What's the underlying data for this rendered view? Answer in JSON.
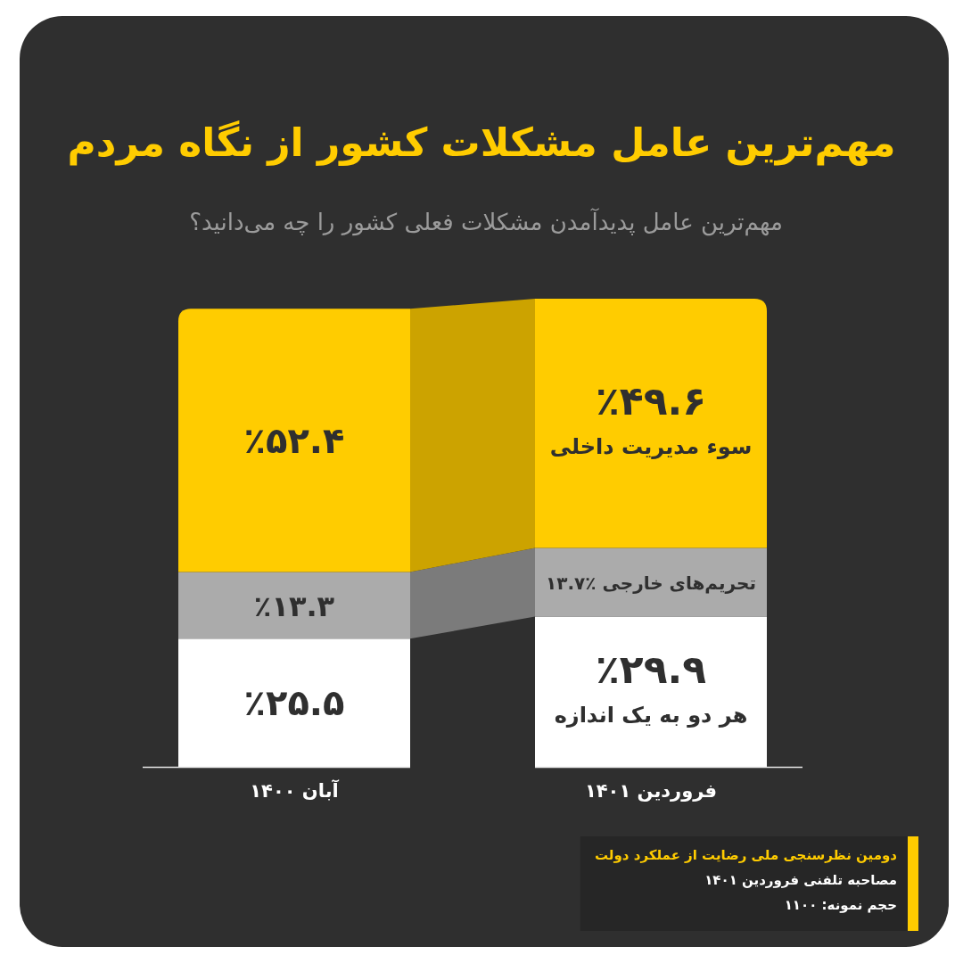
{
  "chart_data": {
    "type": "bar",
    "stacked": true,
    "tick_labels": "x",
    "title": "مهم‌ترین عامل مشکلات کشور از نگاه مردم",
    "subtitle": "مهم‌ترین عامل پدیدآمدن مشکلات فعلی کشور را چه می‌دانید؟",
    "categories": [
      "آبان ۱۴۰۰",
      "فروردین ۱۴۰۱"
    ],
    "series": [
      {
        "name": "هر دو به یک اندازه",
        "color": "#ffffff",
        "values": [
          25.5,
          29.9
        ],
        "value_labels": [
          "٪۲۵.۵",
          "٪۲۹.۹"
        ]
      },
      {
        "name": "تحریم‌های خارجی",
        "color": "#ababab",
        "values": [
          13.3,
          13.7
        ],
        "value_labels": [
          "٪۱۳.۳",
          "٪۱۳.۷"
        ]
      },
      {
        "name": "سوء مدیریت داخلی",
        "color": "#ffcc00",
        "values": [
          52.4,
          49.6
        ],
        "value_labels": [
          "٪۵۲.۴",
          "٪۴۹.۶"
        ]
      }
    ],
    "annotations": [
      "دومین نظرسنجی ملی رضایت از عملکرد دولت",
      "مصاحبه تلفنی فروردین ۱۴۰۱",
      "حجم نمونه: ۱۱۰۰"
    ]
  }
}
